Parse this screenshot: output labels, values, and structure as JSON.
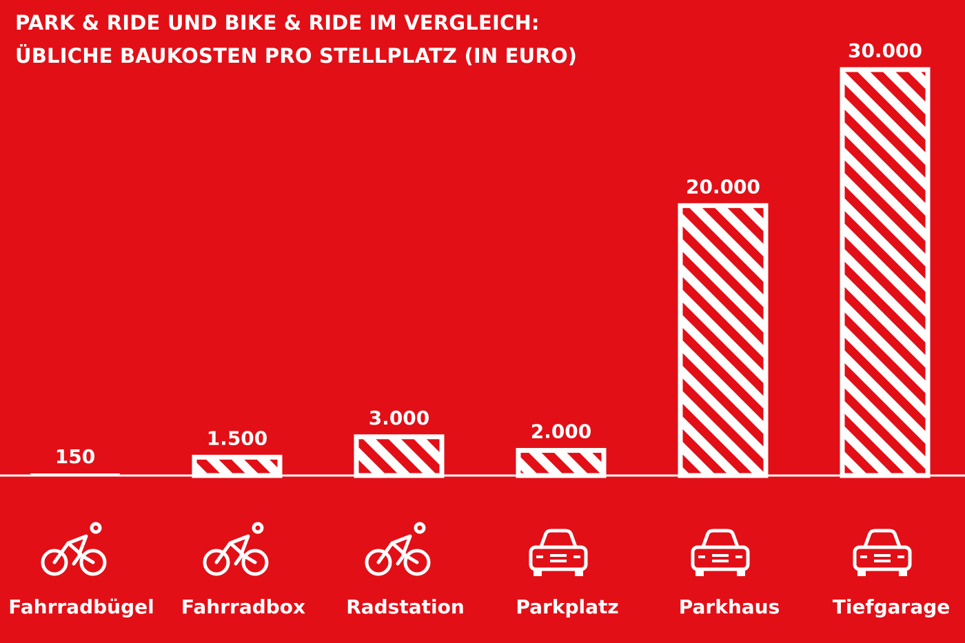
{
  "colors": {
    "background": "#e20f17",
    "foreground": "#ffffff"
  },
  "chart_data": {
    "type": "bar",
    "title": "PARK & RIDE UND BIKE & RIDE IM VERGLEICH:",
    "subtitle": "ÜBLICHE BAUKOSTEN PRO STELLPLATZ (IN EURO)",
    "xlabel": "",
    "ylabel": "",
    "ylim": [
      0,
      30000
    ],
    "grid": false,
    "bar_style": "hatched-diagonal",
    "categories": [
      "Fahrradbügel",
      "Fahrradbox",
      "Radstation",
      "Parkplatz",
      "Parkhaus",
      "Tiefgarage"
    ],
    "values": [
      150,
      1500,
      3000,
      2000,
      20000,
      30000
    ],
    "value_labels": [
      "150",
      "1.500",
      "3.000",
      "2.000",
      "20.000",
      "30.000"
    ],
    "icons": [
      "bicycle-icon",
      "bicycle-icon",
      "bicycle-icon",
      "car-icon",
      "car-icon",
      "car-icon"
    ]
  }
}
